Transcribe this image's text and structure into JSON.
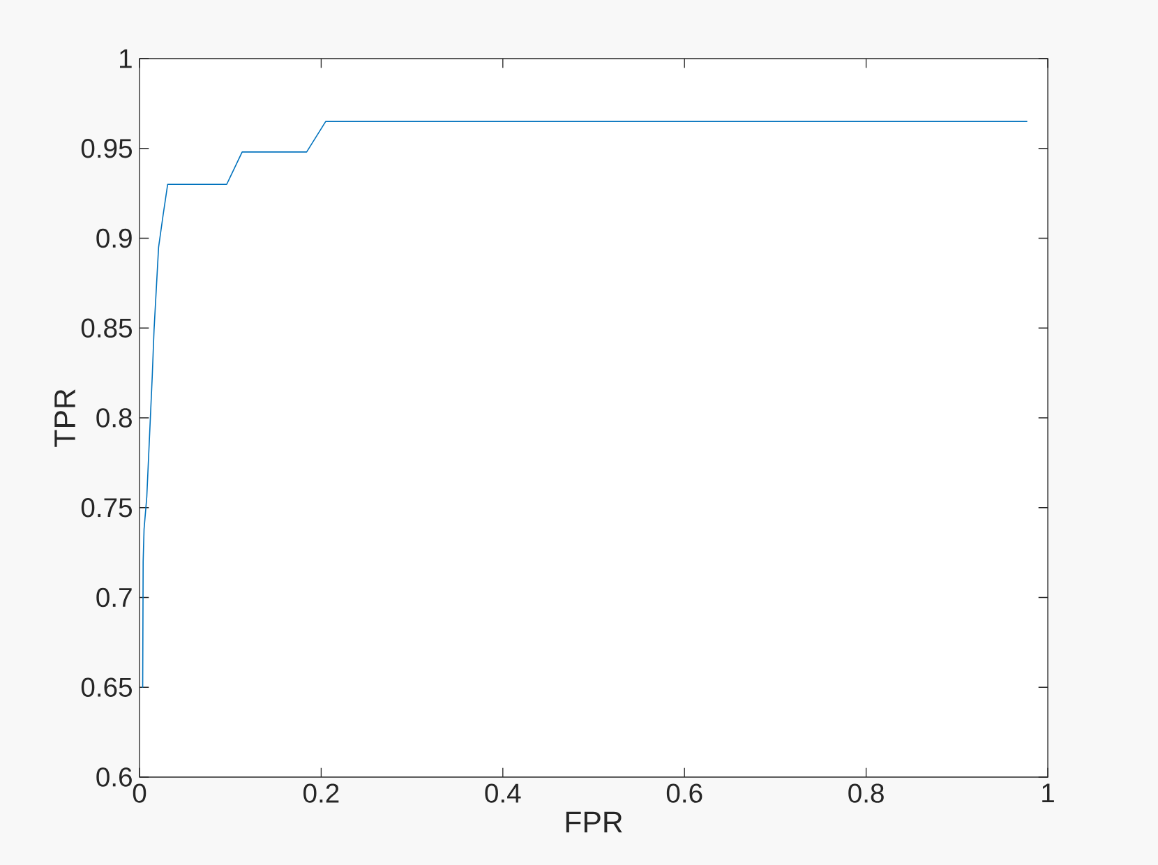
{
  "chart_data": {
    "type": "line",
    "xlabel": "FPR",
    "ylabel": "TPR",
    "x": [
      0.0035,
      0.004,
      0.005,
      0.008,
      0.014,
      0.016,
      0.021,
      0.026,
      0.031,
      0.096,
      0.113,
      0.184,
      0.205,
      0.977
    ],
    "series": [
      {
        "color": "#0072bd",
        "values": [
          0.65,
          0.72,
          0.738,
          0.756,
          0.823,
          0.849,
          0.895,
          0.913,
          0.93,
          0.93,
          0.948,
          0.948,
          0.965,
          0.965
        ]
      }
    ],
    "xlim": [
      0,
      1
    ],
    "ylim": [
      0.6,
      1
    ],
    "xticks": [
      0,
      0.2,
      0.4,
      0.6,
      0.8,
      1
    ],
    "yticks": [
      0.6,
      0.65,
      0.7,
      0.75,
      0.8,
      0.85,
      0.9,
      0.95,
      1
    ],
    "line_style": "solid"
  }
}
